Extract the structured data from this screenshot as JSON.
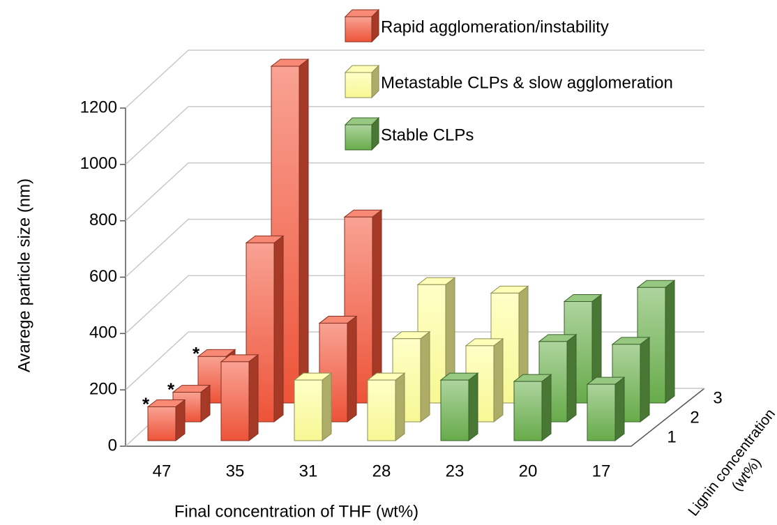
{
  "chart_data": {
    "type": "bar3d",
    "y_label": "Avarege particle size (nm)",
    "x_label": "Final concentration of THF (wt%)",
    "depth_label": [
      "Lignin concentration",
      "(wt%)"
    ],
    "categories": [
      "47",
      "35",
      "31",
      "28",
      "23",
      "20",
      "17"
    ],
    "series": [
      {
        "name": "1",
        "values": [
          120,
          280,
          215,
          215,
          215,
          210,
          200
        ],
        "colors": [
          "#f4563a",
          "#f4563a",
          "#ffff99",
          "#ffff99",
          "#6ab04c",
          "#6ab04c",
          "#6ab04c"
        ],
        "notes": [
          "*",
          null,
          null,
          null,
          null,
          null,
          null
        ]
      },
      {
        "name": "2",
        "values": [
          105,
          635,
          350,
          295,
          270,
          285,
          275
        ],
        "colors": [
          "#f4563a",
          "#f4563a",
          "#f4563a",
          "#ffff99",
          "#ffff99",
          "#6ab04c",
          "#6ab04c"
        ],
        "notes": [
          "*",
          null,
          null,
          null,
          null,
          null,
          null
        ]
      },
      {
        "name": "3",
        "values": [
          165,
          1195,
          660,
          420,
          390,
          360,
          410
        ],
        "colors": [
          "#f4563a",
          "#f4563a",
          "#f4563a",
          "#ffff99",
          "#ffff99",
          "#6ab04c",
          "#6ab04c"
        ],
        "notes": [
          "*",
          null,
          null,
          null,
          null,
          null,
          null
        ]
      }
    ],
    "legend": [
      {
        "name": "Rapid agglomeration/instability",
        "color": "#f4563a"
      },
      {
        "name": "Metastable CLPs & slow agglomeration",
        "color": "#ffff99"
      },
      {
        "name": "Stable CLPs",
        "color": "#6ab04c"
      }
    ],
    "ylim": [
      0,
      1200
    ],
    "yticks": [
      0,
      200,
      400,
      600,
      800,
      1000,
      1200
    ],
    "grid": true
  }
}
